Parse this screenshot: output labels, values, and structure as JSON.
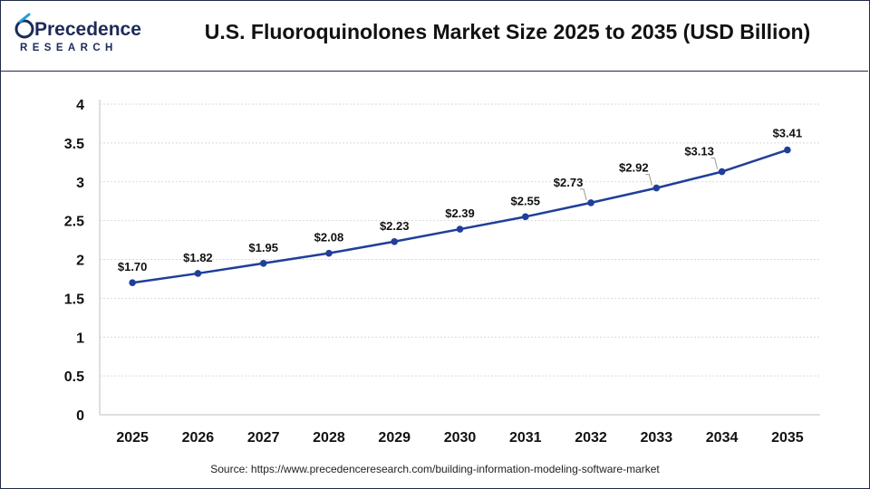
{
  "logo": {
    "name_line1": "Precedence",
    "name_line2": "RESEARCH",
    "colors": {
      "navy": "#1c2b5a",
      "accent": "#1fa0d8"
    }
  },
  "title": "U.S. Fluoroquinolones Market Size 2025 to 2035 (USD Billion)",
  "source": "Source: https://www.precedenceresearch.com/building-information-modeling-software-market",
  "chart_data": {
    "type": "line",
    "title": "U.S. Fluoroquinolones Market Size 2025 to 2035 (USD Billion)",
    "xlabel": "",
    "ylabel": "",
    "categories": [
      "2025",
      "2026",
      "2027",
      "2028",
      "2029",
      "2030",
      "2031",
      "2032",
      "2033",
      "2034",
      "2035"
    ],
    "values": [
      1.7,
      1.82,
      1.95,
      2.08,
      2.23,
      2.39,
      2.55,
      2.73,
      2.92,
      3.13,
      3.41
    ],
    "data_labels": [
      "$1.70",
      "$1.82",
      "$1.95",
      "$2.08",
      "$2.23",
      "$2.39",
      "$2.55",
      "$2.73",
      "$2.92",
      "$3.13",
      "$3.41"
    ],
    "y_ticks": [
      "0",
      "0.5",
      "1",
      "1.5",
      "2",
      "2.5",
      "3",
      "3.5",
      "4"
    ],
    "ylim": [
      0,
      4
    ],
    "grid": true,
    "line_color": "#1f3f99",
    "marker_color": "#1f3f99"
  }
}
